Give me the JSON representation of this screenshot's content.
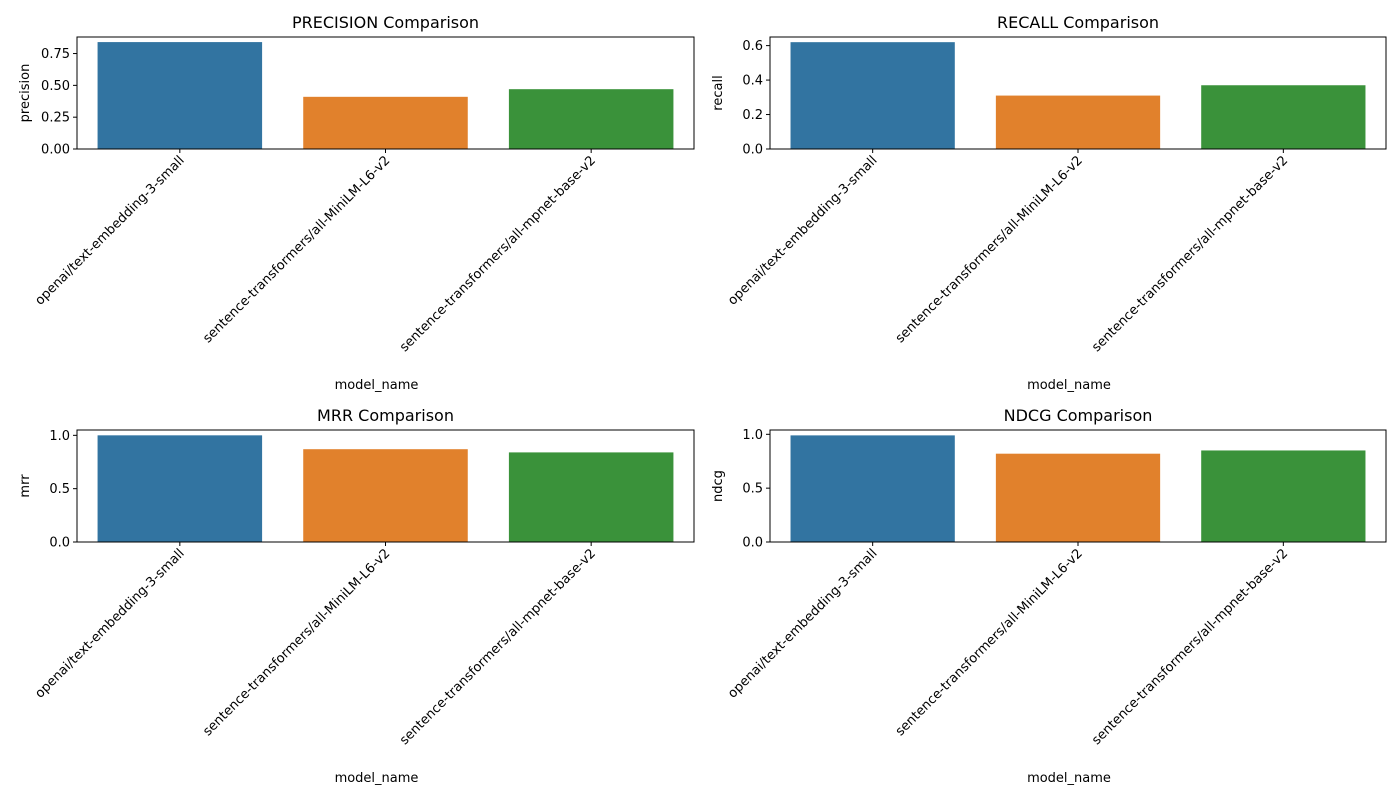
{
  "chart_data": [
    {
      "type": "bar",
      "title": "PRECISION Comparison",
      "xlabel": "model_name",
      "ylabel": "precision",
      "categories": [
        "openai/text-embedding-3-small",
        "sentence-transformers/all-MiniLM-L6-v2",
        "sentence-transformers/all-mpnet-base-v2"
      ],
      "values": [
        0.84,
        0.41,
        0.47
      ],
      "colors": [
        "#3274a1",
        "#e1812c",
        "#3a923a"
      ],
      "ylim": [
        0,
        0.88
      ],
      "yticks": [
        0,
        0.25,
        0.5,
        0.75
      ],
      "ytick_labels": [
        "0.00",
        "0.25",
        "0.50",
        "0.75"
      ],
      "grid": false
    },
    {
      "type": "bar",
      "title": "RECALL Comparison",
      "xlabel": "model_name",
      "ylabel": "recall",
      "categories": [
        "openai/text-embedding-3-small",
        "sentence-transformers/all-MiniLM-L6-v2",
        "sentence-transformers/all-mpnet-base-v2"
      ],
      "values": [
        0.62,
        0.31,
        0.37
      ],
      "colors": [
        "#3274a1",
        "#e1812c",
        "#3a923a"
      ],
      "ylim": [
        0,
        0.65
      ],
      "yticks": [
        0,
        0.2,
        0.4,
        0.6
      ],
      "ytick_labels": [
        "0.0",
        "0.2",
        "0.4",
        "0.6"
      ],
      "grid": false
    },
    {
      "type": "bar",
      "title": "MRR Comparison",
      "xlabel": "model_name",
      "ylabel": "mrr",
      "categories": [
        "openai/text-embedding-3-small",
        "sentence-transformers/all-MiniLM-L6-v2",
        "sentence-transformers/all-mpnet-base-v2"
      ],
      "values": [
        1.0,
        0.87,
        0.84
      ],
      "colors": [
        "#3274a1",
        "#e1812c",
        "#3a923a"
      ],
      "ylim": [
        0,
        1.05
      ],
      "yticks": [
        0,
        0.5,
        1.0
      ],
      "ytick_labels": [
        "0.0",
        "0.5",
        "1.0"
      ],
      "grid": false
    },
    {
      "type": "bar",
      "title": "NDCG Comparison",
      "xlabel": "model_name",
      "ylabel": "ndcg",
      "categories": [
        "openai/text-embedding-3-small",
        "sentence-transformers/all-MiniLM-L6-v2",
        "sentence-transformers/all-mpnet-base-v2"
      ],
      "values": [
        0.99,
        0.82,
        0.85
      ],
      "colors": [
        "#3274a1",
        "#e1812c",
        "#3a923a"
      ],
      "ylim": [
        0,
        1.04
      ],
      "yticks": [
        0,
        0.5,
        1.0
      ],
      "ytick_labels": [
        "0.0",
        "0.5",
        "1.0"
      ],
      "grid": false
    }
  ]
}
